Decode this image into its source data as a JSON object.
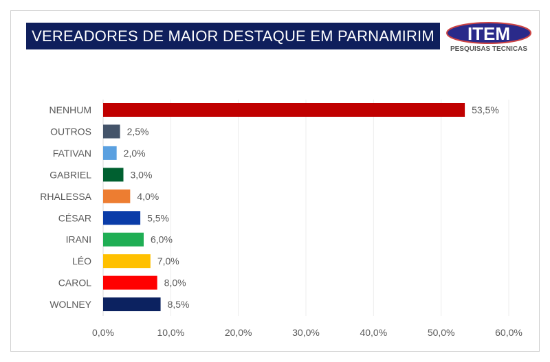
{
  "title": "VEREADORES DE MAIOR DESTAQUE EM PARNAMIRIM",
  "logo": {
    "text": "ITEM",
    "subtext": "PESQUISAS TECNICAS"
  },
  "chart_data": {
    "type": "bar",
    "orientation": "horizontal",
    "title": "VEREADORES DE MAIOR DESTAQUE EM PARNAMIRIM",
    "categories": [
      "NENHUM",
      "OUTROS",
      "FATIVAN",
      "GABRIEL",
      "RHALESSA",
      "CÉSAR",
      "IRANI",
      "LÉO",
      "CAROL",
      "WOLNEY"
    ],
    "values": [
      53.5,
      2.5,
      2.0,
      3.0,
      4.0,
      5.5,
      6.0,
      7.0,
      8.0,
      8.5
    ],
    "data_labels": [
      "53,5%",
      "2,5%",
      "2,0%",
      "3,0%",
      "4,0%",
      "5,5%",
      "6,0%",
      "7,0%",
      "8,0%",
      "8,5%"
    ],
    "colors": [
      "#c00000",
      "#44546a",
      "#5aa0e0",
      "#006030",
      "#ed7d31",
      "#0a3ca8",
      "#1fae54",
      "#ffc000",
      "#ff0000",
      "#0c2260"
    ],
    "xlim": [
      0,
      60
    ],
    "xticks": [
      "0,0%",
      "10,0%",
      "20,0%",
      "30,0%",
      "40,0%",
      "50,0%",
      "60,0%"
    ],
    "grid": true,
    "xlabel": "",
    "ylabel": ""
  }
}
